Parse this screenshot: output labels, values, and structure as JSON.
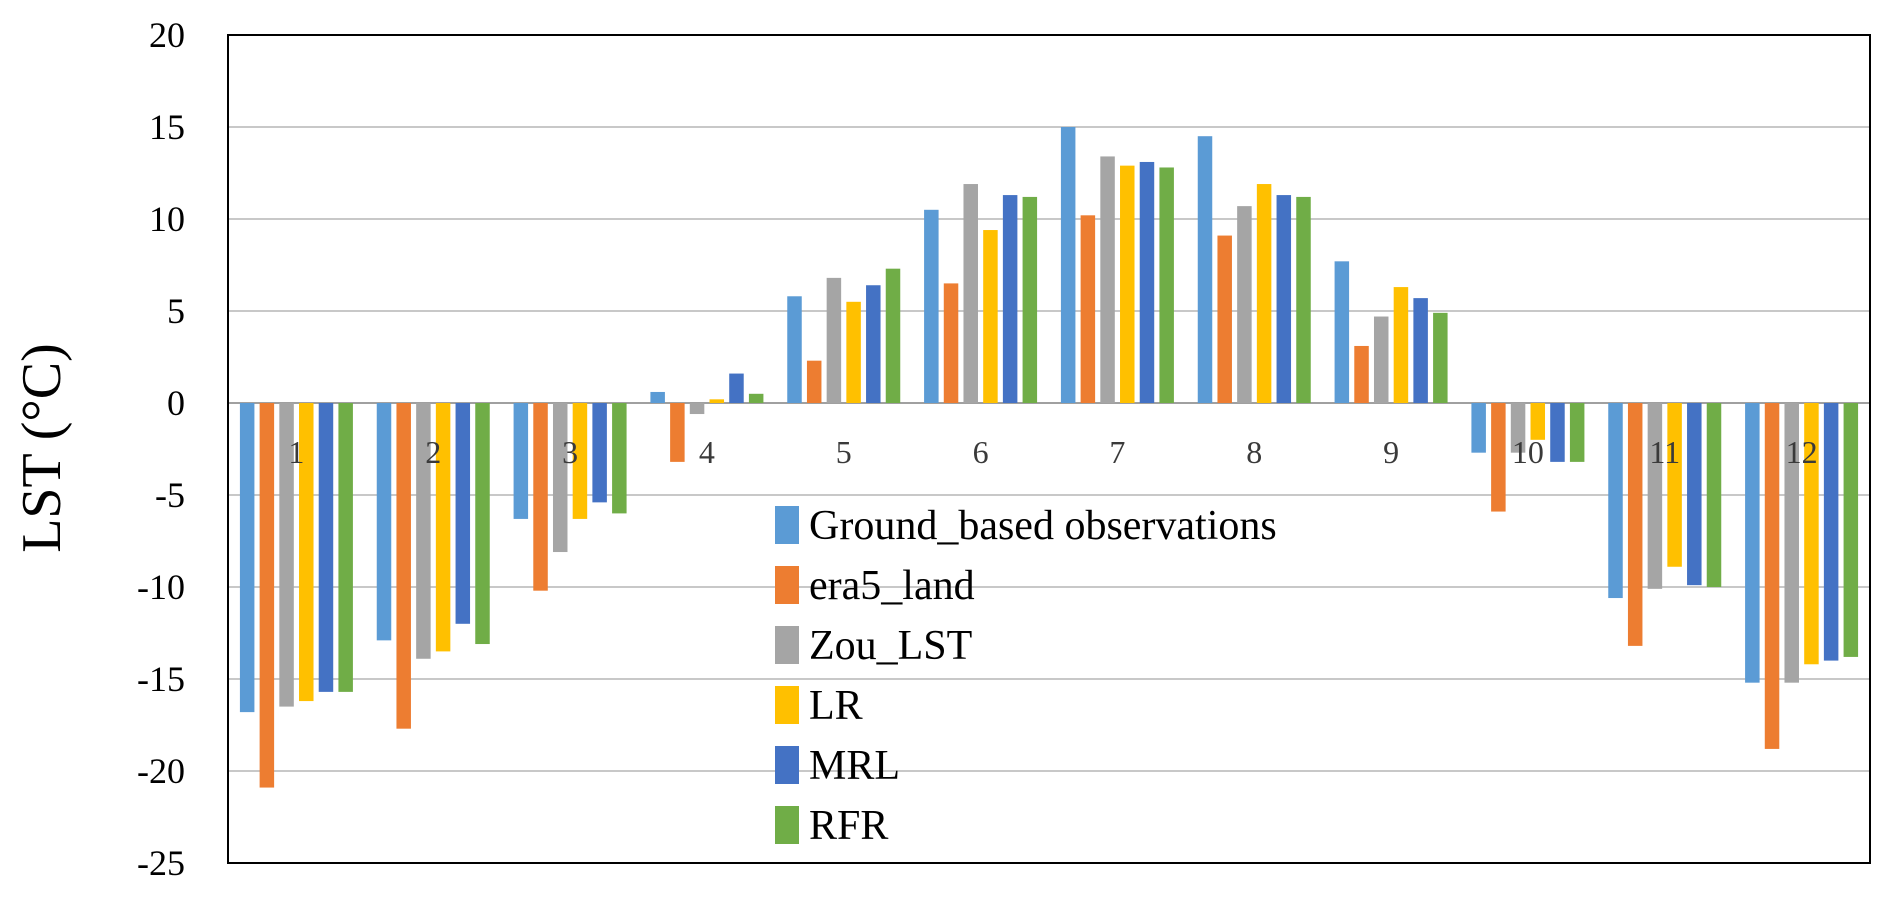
{
  "chart_data": {
    "type": "bar",
    "title": "",
    "xlabel": "",
    "ylabel": "LST (°C)",
    "ylim": [
      -25,
      20
    ],
    "yticks": [
      20,
      15,
      10,
      5,
      0,
      -5,
      -10,
      -15,
      -20,
      -25
    ],
    "grid": true,
    "legend_position": "center",
    "categories": [
      "1",
      "2",
      "3",
      "4",
      "5",
      "6",
      "7",
      "8",
      "9",
      "10",
      "11",
      "12"
    ],
    "series": [
      {
        "name": "Ground_based observations",
        "color": "#5B9BD5",
        "values": [
          -16.8,
          -12.9,
          -6.3,
          0.6,
          5.8,
          10.5,
          15.0,
          14.5,
          7.7,
          -2.7,
          -10.6,
          -15.2
        ]
      },
      {
        "name": "era5_land",
        "color": "#ED7D31",
        "values": [
          -20.9,
          -17.7,
          -10.2,
          -3.2,
          2.3,
          6.5,
          10.2,
          9.1,
          3.1,
          -5.9,
          -13.2,
          -18.8
        ]
      },
      {
        "name": "Zou_LST",
        "color": "#A5A5A5",
        "values": [
          -16.5,
          -13.9,
          -8.1,
          -0.6,
          6.8,
          11.9,
          13.4,
          10.7,
          4.7,
          -2.7,
          -10.1,
          -15.2
        ]
      },
      {
        "name": "LR",
        "color": "#FFC000",
        "values": [
          -16.2,
          -13.5,
          -6.3,
          0.2,
          5.5,
          9.4,
          12.9,
          11.9,
          6.3,
          -2.0,
          -8.9,
          -14.2
        ]
      },
      {
        "name": "MRL",
        "color": "#4472C4",
        "values": [
          -15.7,
          -12.0,
          -5.4,
          1.6,
          6.4,
          11.3,
          13.1,
          11.3,
          5.7,
          -3.2,
          -9.9,
          -14.0
        ]
      },
      {
        "name": "RFR",
        "color": "#70AD47",
        "values": [
          -15.7,
          -13.1,
          -6.0,
          0.5,
          7.3,
          11.2,
          12.8,
          11.2,
          4.9,
          -3.2,
          -10.0,
          -13.8
        ]
      }
    ]
  }
}
